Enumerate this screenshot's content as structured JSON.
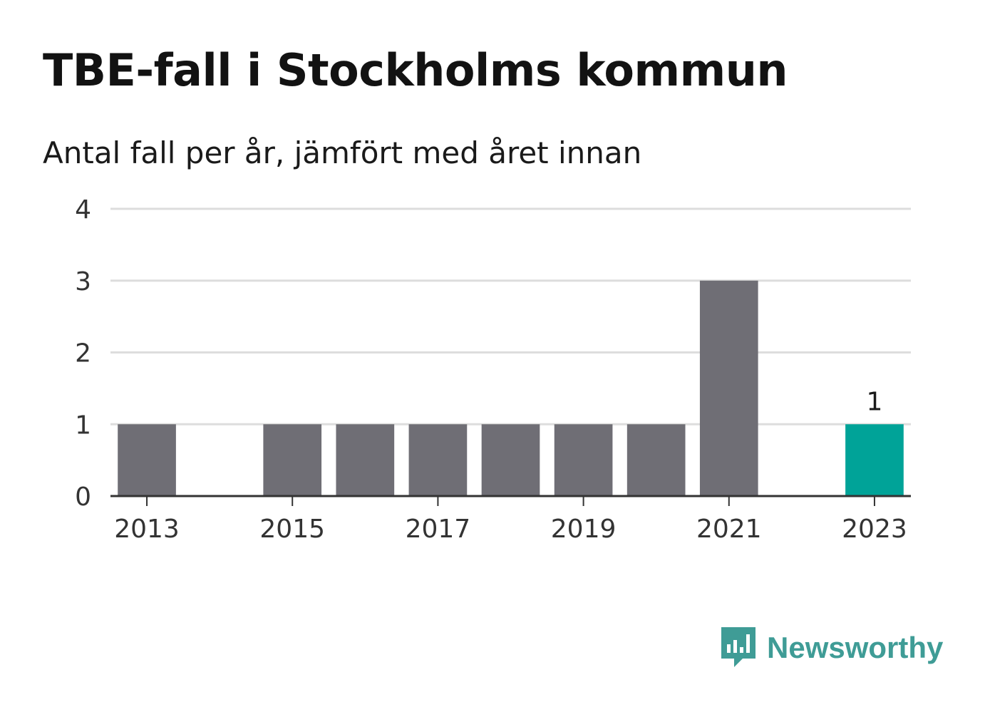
{
  "chart_data": {
    "type": "bar",
    "title": "TBE-fall i Stockholms kommun",
    "subtitle": "Antal fall per år, jämfört med året innan",
    "categories": [
      "2013",
      "2014",
      "2015",
      "2016",
      "2017",
      "2018",
      "2019",
      "2020",
      "2021",
      "2022",
      "2023"
    ],
    "values": [
      1,
      0,
      1,
      1,
      1,
      1,
      1,
      1,
      3,
      0,
      1
    ],
    "x_tick_labels": [
      "2013",
      "2015",
      "2017",
      "2019",
      "2021",
      "2023"
    ],
    "y_ticks": [
      "0",
      "1",
      "2",
      "3",
      "4"
    ],
    "ylim": [
      0,
      4
    ],
    "grid": true,
    "highlight": {
      "category": "2023",
      "label": "1"
    },
    "colors": {
      "bar": "#6f6e75",
      "highlight": "#00a398",
      "grid": "#dddddd",
      "axis": "#333333"
    }
  },
  "brand": {
    "name": "Newsworthy",
    "logo_icon": "newsworthy-logo-icon",
    "color": "#3f9c96"
  }
}
